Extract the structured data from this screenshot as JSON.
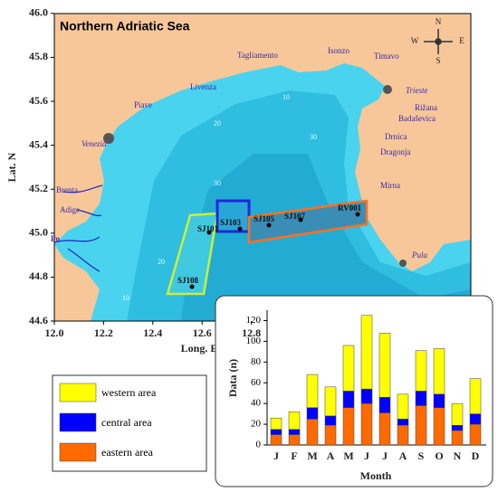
{
  "map": {
    "title": "Northern Adriatic Sea",
    "xlabel": "Long. E",
    "ylabel": "Lat. N",
    "xticks": [
      {
        "value": 12,
        "label": "12.0"
      },
      12.2,
      12.4,
      12.6,
      12.8
    ],
    "yticks": [
      {
        "value": 44.6,
        "label": "44.6"
      },
      44.8,
      {
        "value": 45,
        "label": "45.0"
      },
      45.2,
      45.4,
      45.6,
      45.8,
      {
        "value": 46,
        "label": "46.0"
      }
    ],
    "places": [
      "Tagliamento",
      "Isonzo",
      "Timavo",
      "Livenza",
      "Piave",
      "Trieste",
      "Rižana",
      "Badaševica",
      "Drnica",
      "Dragonja",
      "Mirna",
      "Venezia",
      "Brenta",
      "Adige",
      "Po",
      "Pula"
    ],
    "stations": [
      "SJ101",
      "SJ103",
      "SJ105",
      "SJ107",
      "RV001",
      "SJ108"
    ],
    "compass": [
      "N",
      "S",
      "W",
      "E"
    ],
    "contours": [
      "10",
      "20",
      "30",
      "30",
      "20",
      "10"
    ]
  },
  "chart_data": {
    "type": "bar",
    "stacked": true,
    "xlabel": "Month",
    "ylabel": "Data (n)",
    "categories": [
      "J",
      "F",
      "M",
      "A",
      "M",
      "J",
      "J",
      "A",
      "S",
      "O",
      "N",
      "D"
    ],
    "series": [
      {
        "name": "western area",
        "color": "#ffff00",
        "values": [
          11,
          17,
          32,
          28,
          44,
          71,
          62,
          24,
          39,
          44,
          21,
          34
        ]
      },
      {
        "name": "central area",
        "color": "#0000ff",
        "values": [
          5,
          5,
          11,
          9,
          16,
          14,
          15,
          6,
          14,
          13,
          5,
          10
        ]
      },
      {
        "name": "eastern area",
        "color": "#ff6a00",
        "values": [
          10,
          10,
          25,
          19,
          36,
          40,
          31,
          19,
          38,
          36,
          14,
          20
        ]
      }
    ],
    "ylim": [
      0,
      130
    ],
    "yticks": [
      0,
      20,
      40,
      60,
      80,
      100,
      120
    ]
  }
}
